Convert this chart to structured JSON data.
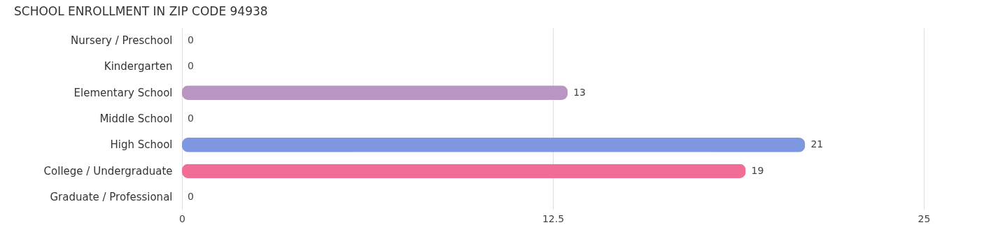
{
  "chart_data": {
    "type": "bar",
    "orientation": "horizontal",
    "title": "SCHOOL ENROLLMENT IN ZIP CODE 94938",
    "categories": [
      "Nursery / Preschool",
      "Kindergarten",
      "Elementary School",
      "Middle School",
      "High School",
      "College / Undergraduate",
      "Graduate / Professional"
    ],
    "values": [
      0,
      0,
      13,
      0,
      21,
      19,
      0
    ],
    "colors": [
      "#f4aaa9",
      "#a9c7eb",
      "#b995c2",
      "#7ecdd2",
      "#7f96e0",
      "#f26d95",
      "#f8c79c"
    ],
    "xlim": [
      0,
      25
    ],
    "xticks": [
      0,
      12.5,
      25
    ],
    "grid": "x",
    "data_labels": true
  }
}
